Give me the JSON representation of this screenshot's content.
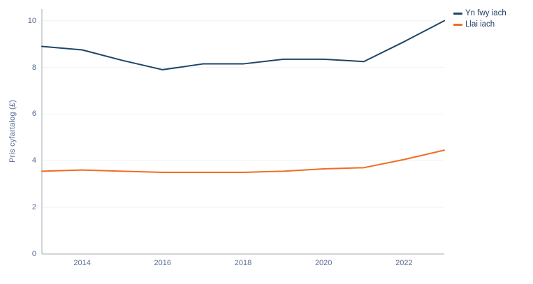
{
  "chart_data": {
    "type": "line",
    "title": "",
    "xlabel": "",
    "ylabel": "Pris cyfartalog (£)",
    "x": [
      2013,
      2014,
      2015,
      2016,
      2017,
      2018,
      2019,
      2020,
      2021,
      2022,
      2023
    ],
    "series": [
      {
        "name": "Yn fwy iach",
        "color": "#1d4568",
        "values": [
          8.9,
          8.75,
          8.3,
          7.9,
          8.15,
          8.15,
          8.35,
          8.35,
          8.25,
          9.1,
          10.0
        ]
      },
      {
        "name": "Llai iach",
        "color": "#f06c23",
        "values": [
          3.55,
          3.6,
          3.55,
          3.5,
          3.5,
          3.5,
          3.55,
          3.65,
          3.7,
          4.05,
          4.45
        ]
      }
    ],
    "ylim": [
      0,
      10.5
    ],
    "y_ticks": [
      0,
      2,
      4,
      6,
      8,
      10
    ],
    "x_ticks": [
      2014,
      2016,
      2018,
      2020,
      2022
    ],
    "grid": "horizontal",
    "legend_position": "top-right"
  },
  "styles": {
    "axis_line_color": "#a6abb5",
    "grid_color": "#f0f2f5",
    "tick_label_color": "#5a6d96",
    "axis_title_color": "#5a6d96",
    "legend_text_color": "#1f3e63",
    "background_color": "#ffffff",
    "line_width": 2
  }
}
